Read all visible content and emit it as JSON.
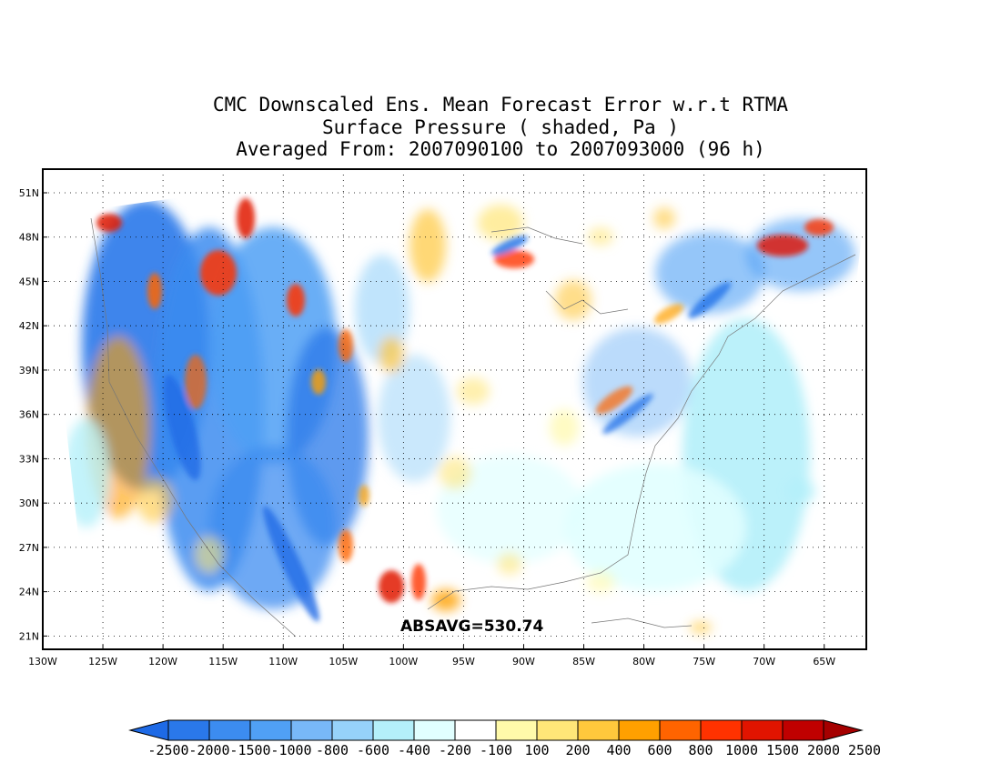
{
  "title": {
    "line1": "CMC Downscaled Ens. Mean Forecast Error w.r.t RTMA",
    "line2": "Surface Pressure ( shaded, Pa )",
    "line3": "Averaged From: 2007090100 to 2007093000 (96 h)"
  },
  "map": {
    "lat_ticks": [
      "51N",
      "48N",
      "45N",
      "42N",
      "39N",
      "36N",
      "33N",
      "30N",
      "27N",
      "24N",
      "21N"
    ],
    "lon_ticks": [
      "130W",
      "125W",
      "120W",
      "115W",
      "110W",
      "105W",
      "100W",
      "95W",
      "90W",
      "85W",
      "80W",
      "75W",
      "70W",
      "65W"
    ],
    "stat_label": "ABSAVG=530.74",
    "grid": "dotted"
  },
  "colorbar": {
    "labels": [
      "-2500",
      "-2000",
      "-1500",
      "-1000",
      "-800",
      "-600",
      "-400",
      "-200",
      "-100",
      "100",
      "200",
      "400",
      "600",
      "800",
      "1000",
      "1500",
      "2000",
      "2500"
    ],
    "colors": [
      "#1e6ae6",
      "#2a78ea",
      "#3c8cf0",
      "#50a0f5",
      "#78b8f8",
      "#96d2fa",
      "#b4f0fa",
      "#e1ffff",
      "#ffffff",
      "#fffaaa",
      "#ffe678",
      "#ffc83c",
      "#ffa000",
      "#ff6400",
      "#ff3200",
      "#e11400",
      "#c00000",
      "#a50000"
    ]
  }
}
